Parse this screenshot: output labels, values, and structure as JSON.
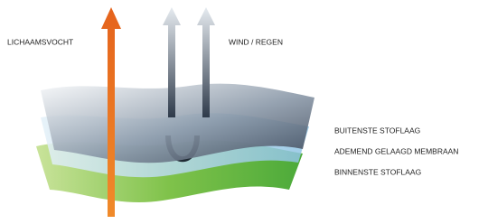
{
  "labels": {
    "body_moisture": "LICHAAMSVOCHT",
    "wind_rain": "WIND / REGEN",
    "outer_layer": "BUITENSTE STOFLAAG",
    "membrane": "ADEMEND GELAAGD MEMBRAAN",
    "inner_layer": "BINNENSTE STOFLAAG"
  }
}
